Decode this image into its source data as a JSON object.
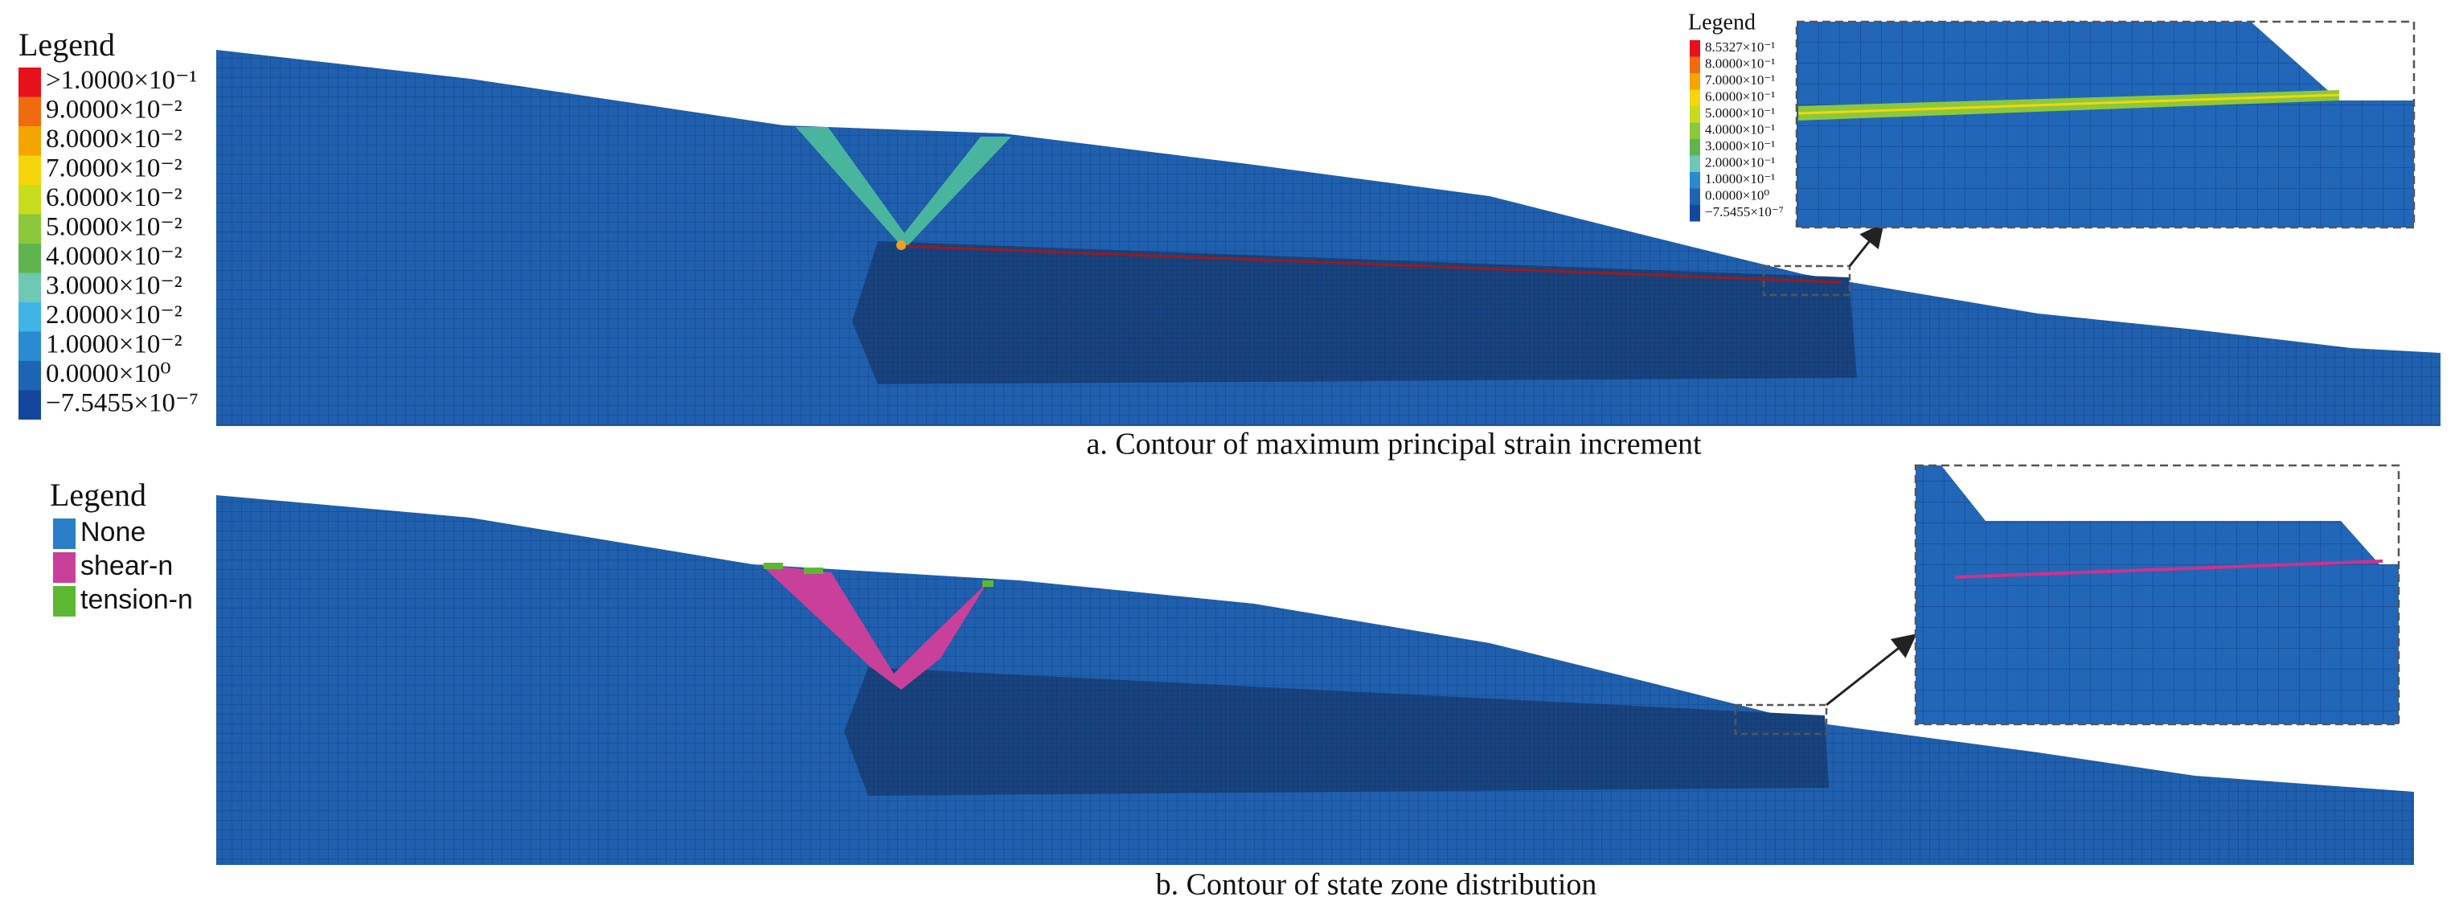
{
  "panel_a": {
    "legend": {
      "title": "Legend",
      "items": [
        {
          "label": ">1.0000×10⁻¹",
          "color": "#e8101a"
        },
        {
          "label": "9.0000×10⁻²",
          "color": "#f06a10"
        },
        {
          "label": "8.0000×10⁻²",
          "color": "#f5a500"
        },
        {
          "label": "7.0000×10⁻²",
          "color": "#f5d60a"
        },
        {
          "label": "6.0000×10⁻²",
          "color": "#c8dc1e"
        },
        {
          "label": "5.0000×10⁻²",
          "color": "#8cc83c"
        },
        {
          "label": "4.0000×10⁻²",
          "color": "#5fb44e"
        },
        {
          "label": "3.0000×10⁻²",
          "color": "#6fc8b4"
        },
        {
          "label": "2.0000×10⁻²",
          "color": "#40b4e6"
        },
        {
          "label": "1.0000×10⁻²",
          "color": "#2a8ad2"
        },
        {
          "label": "0.0000×10⁰",
          "color": "#1e64b4"
        },
        {
          "label": "−7.5455×10⁻⁷",
          "color": "#1446a0"
        }
      ]
    },
    "inset_legend": {
      "title": "Legend",
      "items": [
        {
          "label": "8.5327×10⁻¹",
          "color": "#e8101a"
        },
        {
          "label": "8.0000×10⁻¹",
          "color": "#f06a10"
        },
        {
          "label": "7.0000×10⁻¹",
          "color": "#f5a500"
        },
        {
          "label": "6.0000×10⁻¹",
          "color": "#f5d60a"
        },
        {
          "label": "5.0000×10⁻¹",
          "color": "#c8dc1e"
        },
        {
          "label": "4.0000×10⁻¹",
          "color": "#8cc83c"
        },
        {
          "label": "3.0000×10⁻¹",
          "color": "#5fb44e"
        },
        {
          "label": "2.0000×10⁻¹",
          "color": "#6fc8b4"
        },
        {
          "label": "1.0000×10⁻¹",
          "color": "#2a8ad2"
        },
        {
          "label": "0.0000×10⁰",
          "color": "#1e64b4"
        },
        {
          "label": "−7.5455×10⁻⁷",
          "color": "#1446a0"
        }
      ]
    },
    "caption": "a. Contour of maximum principal strain increment"
  },
  "panel_b": {
    "legend": {
      "title": "Legend",
      "items": [
        {
          "label": "None",
          "color": "#2a7fc8"
        },
        {
          "label": "shear-n",
          "color": "#c8409a"
        },
        {
          "label": "tension-n",
          "color": "#5cb832"
        }
      ]
    },
    "caption": "b. Contour of state zone distribution"
  }
}
